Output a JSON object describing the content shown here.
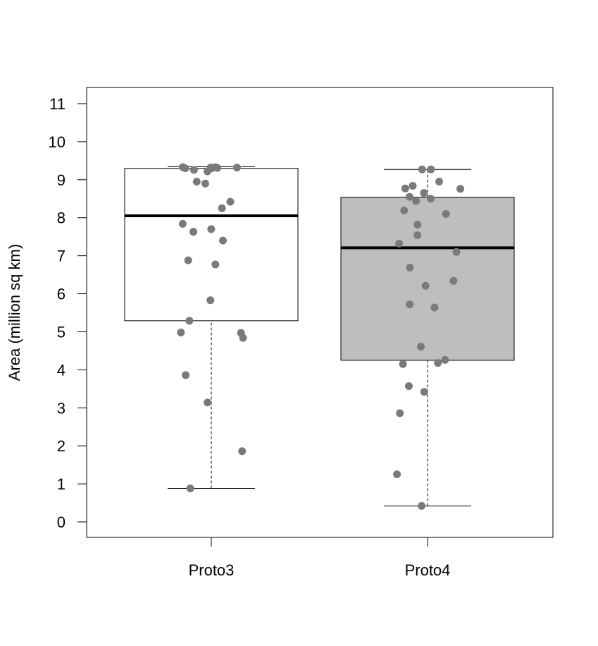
{
  "chart_data": {
    "type": "box",
    "title": "",
    "xlabel": "",
    "ylabel": "Area (million sq km)",
    "ylim": [
      -0.4,
      11.4
    ],
    "yticks": [
      0,
      1,
      2,
      3,
      4,
      5,
      6,
      7,
      8,
      9,
      10,
      11
    ],
    "categories": [
      "Proto3",
      "Proto4"
    ],
    "boxes": [
      {
        "category": "Proto3",
        "fill": "#ffffff",
        "whisker_low": 0.88,
        "q1": 5.29,
        "median": 8.05,
        "q3": 9.3,
        "whisker_high": 9.34
      },
      {
        "category": "Proto4",
        "fill": "#bebebe",
        "whisker_low": 0.42,
        "q1": 4.25,
        "median": 7.21,
        "q3": 8.54,
        "whisker_high": 9.27
      }
    ],
    "points_color": "#7a7a7a",
    "points": [
      {
        "category": "Proto3",
        "values": [
          9.32,
          9.33,
          9.3,
          9.26,
          9.22,
          9.3,
          9.33,
          9.32,
          9.31,
          8.9,
          8.95,
          8.42,
          8.25,
          7.84,
          7.7,
          7.63,
          7.4,
          6.88,
          6.77,
          5.83,
          5.29,
          4.98,
          4.97,
          4.84,
          3.86,
          3.14,
          1.86,
          0.88
        ]
      },
      {
        "category": "Proto4",
        "values": [
          9.27,
          9.27,
          8.95,
          8.84,
          8.77,
          8.76,
          8.65,
          8.55,
          8.5,
          8.44,
          8.19,
          8.1,
          7.82,
          7.54,
          7.32,
          7.1,
          6.69,
          6.34,
          6.21,
          5.72,
          5.64,
          4.61,
          4.26,
          4.18,
          4.15,
          3.57,
          3.42,
          2.86,
          1.25,
          0.42
        ]
      }
    ],
    "grid": false,
    "legend": "none"
  }
}
